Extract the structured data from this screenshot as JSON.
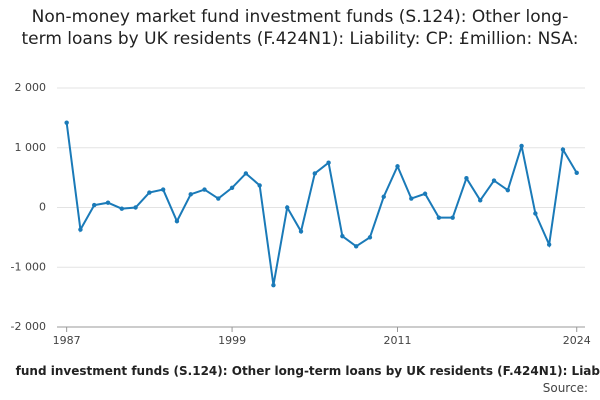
{
  "chart_data": {
    "type": "line",
    "title": "Non-money market fund investment funds (S.124): Other long-term loans by UK residents (F.424N1): Liability: CP: £million: NSA:",
    "footer": "fund investment funds (S.124): Other long-term loans by UK residents (F.424N1): Liab",
    "source": "Source:",
    "x": [
      1987,
      1988,
      1989,
      1990,
      1991,
      1992,
      1993,
      1994,
      1995,
      1996,
      1997,
      1998,
      1999,
      2000,
      2001,
      2002,
      2003,
      2004,
      2005,
      2006,
      2007,
      2008,
      2009,
      2010,
      2011,
      2012,
      2013,
      2014,
      2015,
      2016,
      2017,
      2018,
      2019,
      2020,
      2021,
      2022,
      2023,
      2024
    ],
    "series": [
      {
        "color": "#1a7ab8",
        "values": [
          1420,
          -370,
          40,
          80,
          -20,
          0,
          250,
          300,
          -230,
          220,
          300,
          150,
          330,
          570,
          370,
          -1300,
          0,
          -400,
          570,
          750,
          -480,
          -650,
          -500,
          180,
          690,
          150,
          230,
          -170,
          -170,
          490,
          120,
          450,
          290,
          1030,
          -100,
          -620,
          970,
          580
        ]
      }
    ],
    "xlim": [
      1986.3,
      2024.6
    ],
    "xticks": [
      1987,
      1999,
      2011,
      2024
    ],
    "ylim": [
      -2000,
      2000
    ],
    "yticks": [
      {
        "value": 2000,
        "label": "2 000"
      },
      {
        "value": 1000,
        "label": "1 000"
      },
      0,
      {
        "value": -1000,
        "label": "-1 000"
      },
      {
        "value": -2000,
        "label": "-2 000"
      }
    ],
    "grid": true
  }
}
